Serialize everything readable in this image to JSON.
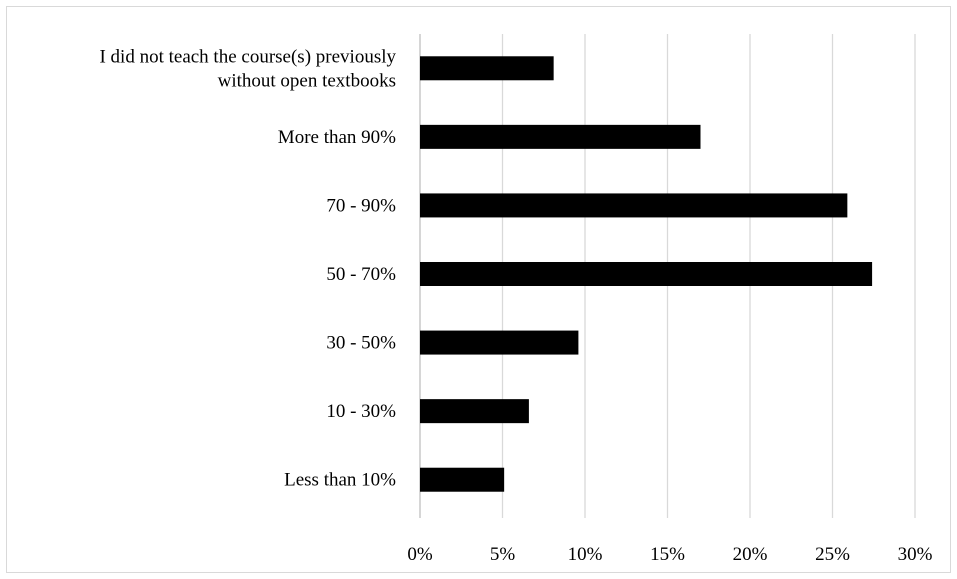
{
  "chart_data": {
    "type": "bar",
    "orientation": "horizontal",
    "title": "",
    "xlabel": "",
    "ylabel": "",
    "categories": [
      [
        "I did not teach the course(s) previously",
        "without open textbooks"
      ],
      [
        "More than 90%"
      ],
      [
        "70 - 90%"
      ],
      [
        "50 - 70%"
      ],
      [
        "30 - 50%"
      ],
      [
        "10 - 30%"
      ],
      [
        "Less than 10%"
      ]
    ],
    "values": [
      8.1,
      17.0,
      25.9,
      27.4,
      9.6,
      6.6,
      5.1
    ],
    "xlim": [
      0,
      30
    ],
    "xticks": [
      0,
      5,
      10,
      15,
      20,
      25,
      30
    ],
    "xtick_labels": [
      "0%",
      "5%",
      "10%",
      "15%",
      "20%",
      "25%",
      "30%"
    ],
    "bar_color": "#000000",
    "gridlines": true,
    "legend": "none"
  }
}
